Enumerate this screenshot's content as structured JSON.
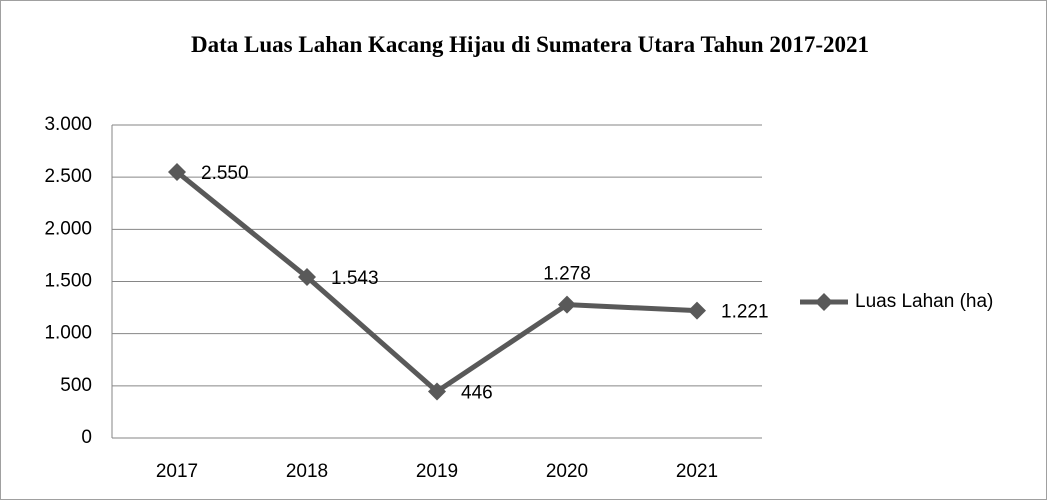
{
  "chart_data": {
    "type": "line",
    "title": "Data Luas Lahan Kacang Hijau di Sumatera Utara Tahun 2017-2021",
    "categories": [
      "2017",
      "2018",
      "2019",
      "2020",
      "2021"
    ],
    "series": [
      {
        "name": "Luas Lahan (ha)",
        "color": "#595959",
        "values": [
          2550,
          1543,
          446,
          1278,
          1221
        ],
        "value_labels": [
          "2.550",
          "1.543",
          "446",
          "1.278",
          "1.221"
        ]
      }
    ],
    "ylim": [
      0,
      3000
    ],
    "yticks": [
      0,
      500,
      {
        "value": 1000,
        "label": "1.000"
      },
      {
        "value": 1500,
        "label": "1.500"
      },
      {
        "value": 2000,
        "label": "2.000"
      },
      {
        "value": 2500,
        "label": "2.500"
      },
      {
        "value": 3000,
        "label": "3.000"
      }
    ],
    "grid": true,
    "legend": "right"
  }
}
